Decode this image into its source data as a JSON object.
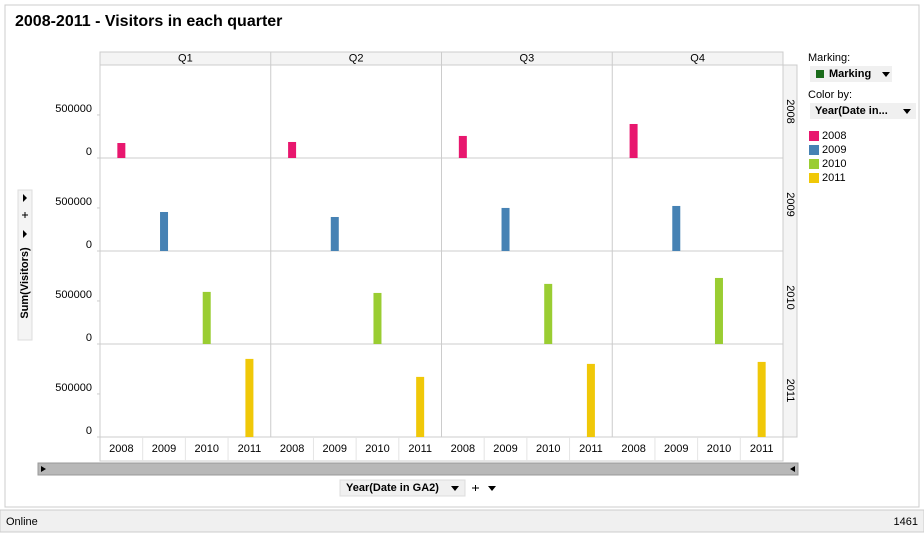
{
  "chart_data": {
    "type": "bar",
    "title": "2008-2011 -  Visitors in each quarter",
    "y_label": "Sum(Visitors)",
    "x_label": "Year(Date in GA2)",
    "columns": [
      "Q1",
      "Q2",
      "Q3",
      "Q4"
    ],
    "categories": [
      "2008",
      "2009",
      "2010",
      "2011"
    ],
    "series": [
      {
        "name": "2008",
        "color": "#e8176e",
        "values": [
          174000,
          186000,
          256000,
          395000
        ]
      },
      {
        "name": "2009",
        "color": "#4682b4",
        "values": [
          453000,
          395000,
          500000,
          523000
        ]
      },
      {
        "name": "2010",
        "color": "#9acd32",
        "values": [
          605000,
          593000,
          698000,
          767000
        ]
      },
      {
        "name": "2011",
        "color": "#f0c808",
        "values": [
          907000,
          698000,
          849000,
          872000
        ]
      }
    ],
    "ylim": [
      0,
      1080000
    ],
    "yticks": [
      0,
      500000
    ]
  },
  "ui": {
    "marking_label": "Marking:",
    "marking_value": "Marking",
    "color_by_label": "Color by:",
    "color_by_value": "Year(Date in...",
    "status": "Online",
    "count": "1461"
  }
}
